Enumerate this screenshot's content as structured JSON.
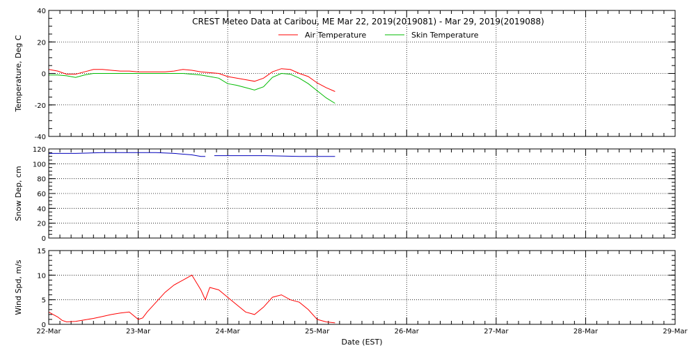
{
  "title": "CREST Meteo Data at Caribou, ME   Mar 22, 2019(2019081) - Mar 29, 2019(2019088)",
  "xlabel": "Date (EST)",
  "x_tick_labels": [
    "22-Mar",
    "23-Mar",
    "24-Mar",
    "25-Mar",
    "26-Mar",
    "27-Mar",
    "28-Mar",
    "29-Mar"
  ],
  "colors": {
    "air": "#ff0000",
    "skin": "#00bb00",
    "snow": "#0000bb",
    "wind": "#ff0000"
  },
  "chart_data": [
    {
      "type": "line",
      "ylabel": "Temperature, Deg C",
      "xlim": [
        0,
        7
      ],
      "ylim": [
        -40,
        40
      ],
      "yticks": [
        -40,
        -20,
        0,
        20,
        40
      ],
      "grid": true,
      "legend": "top-center",
      "series": [
        {
          "name": "Air Temperature",
          "color": "#ff0000",
          "x": [
            0.0,
            0.1,
            0.2,
            0.3,
            0.4,
            0.5,
            0.6,
            0.7,
            0.8,
            0.9,
            1.0,
            1.1,
            1.2,
            1.3,
            1.4,
            1.5,
            1.6,
            1.7,
            1.8,
            1.9,
            2.0,
            2.1,
            2.2,
            2.3,
            2.4,
            2.5,
            2.6,
            2.7,
            2.8,
            2.9,
            3.0,
            3.1,
            3.2
          ],
          "y": [
            2.5,
            1.5,
            -0.5,
            -0.5,
            1.0,
            2.5,
            2.5,
            2.0,
            1.5,
            1.5,
            1.0,
            1.0,
            1.0,
            1.0,
            1.5,
            2.5,
            2.0,
            1.0,
            0.5,
            0.0,
            -2.0,
            -3.0,
            -4.0,
            -5.0,
            -3.0,
            1.0,
            3.0,
            2.5,
            0.0,
            -2.0,
            -6.0,
            -9.0,
            -11.5
          ]
        },
        {
          "name": "Skin Temperature",
          "color": "#00bb00",
          "x": [
            0.0,
            0.1,
            0.2,
            0.3,
            0.4,
            0.5,
            0.6,
            0.7,
            0.8,
            0.9,
            1.0,
            1.1,
            1.2,
            1.3,
            1.4,
            1.5,
            1.6,
            1.7,
            1.8,
            1.9,
            2.0,
            2.1,
            2.2,
            2.3,
            2.4,
            2.5,
            2.6,
            2.7,
            2.8,
            2.9,
            3.0,
            3.1,
            3.2
          ],
          "y": [
            -1.0,
            -1.0,
            -1.5,
            -2.5,
            -1.0,
            0.0,
            0.0,
            0.0,
            0.0,
            0.0,
            0.0,
            0.0,
            0.0,
            0.0,
            0.0,
            0.0,
            -0.5,
            -1.0,
            -2.0,
            -3.0,
            -6.5,
            -7.5,
            -9.0,
            -10.5,
            -8.5,
            -2.5,
            0.0,
            -0.5,
            -3.0,
            -6.5,
            -11.0,
            -15.5,
            -19.0
          ]
        }
      ]
    },
    {
      "type": "line",
      "ylabel": "Snow Dep, cm",
      "xlim": [
        0,
        7
      ],
      "ylim": [
        0,
        120
      ],
      "yticks": [
        0,
        20,
        40,
        60,
        80,
        100,
        120
      ],
      "grid": true,
      "series": [
        {
          "color": "#0000bb",
          "x": [
            0.0,
            0.3,
            0.6,
            0.9,
            1.2,
            1.4,
            1.6,
            1.7,
            1.75,
            1.85,
            2.0,
            2.4,
            2.8,
            3.2
          ],
          "y": [
            114,
            114,
            115,
            115,
            115,
            114,
            112,
            110,
            110,
            111,
            111,
            111,
            110,
            110
          ],
          "gap_after_x": 1.76
        }
      ]
    },
    {
      "type": "line",
      "ylabel": "Wind Spd, m/s",
      "xlim": [
        0,
        7
      ],
      "ylim": [
        0,
        15
      ],
      "yticks": [
        0,
        5,
        10,
        15
      ],
      "grid": true,
      "series": [
        {
          "color": "#ff0000",
          "x": [
            0.0,
            0.05,
            0.1,
            0.15,
            0.2,
            0.3,
            0.4,
            0.5,
            0.6,
            0.7,
            0.8,
            0.9,
            1.0,
            1.05,
            1.1,
            1.2,
            1.3,
            1.4,
            1.5,
            1.6,
            1.7,
            1.75,
            1.8,
            1.9,
            2.0,
            2.1,
            2.2,
            2.3,
            2.4,
            2.5,
            2.6,
            2.7,
            2.8,
            2.9,
            3.0,
            3.1,
            3.2
          ],
          "y": [
            2.5,
            2.0,
            1.5,
            0.8,
            0.5,
            0.6,
            0.9,
            1.2,
            1.6,
            2.0,
            2.3,
            2.5,
            1.0,
            1.3,
            2.5,
            4.5,
            6.5,
            8.0,
            9.0,
            10.0,
            7.0,
            5.0,
            7.5,
            7.0,
            5.5,
            4.0,
            2.5,
            2.0,
            3.5,
            5.5,
            6.0,
            5.0,
            4.5,
            3.0,
            1.0,
            0.5,
            0.3
          ]
        }
      ]
    }
  ]
}
